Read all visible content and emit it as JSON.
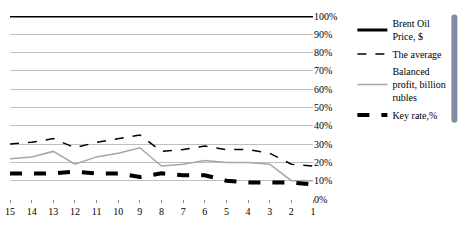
{
  "chart_data": {
    "type": "line",
    "categories": [
      "15",
      "14",
      "13",
      "12",
      "11",
      "10",
      "9",
      "8",
      "7",
      "6",
      "5",
      "4",
      "3",
      "2",
      "1"
    ],
    "series": [
      {
        "name": "Brent Oil Price, $",
        "color": "#000000",
        "line_style": "solid",
        "values": [
          100,
          100,
          100,
          100,
          100,
          100,
          100,
          100,
          100,
          100,
          100,
          100,
          100,
          100,
          100
        ]
      },
      {
        "name": "The average",
        "color": "#000000",
        "line_style": "dashed",
        "values": [
          30,
          31,
          33,
          28,
          31,
          33,
          35,
          26,
          27,
          29,
          27,
          27,
          25,
          19,
          18
        ]
      },
      {
        "name": "Balanced profit, billion rubles",
        "color": "#a6a6a6",
        "line_style": "solid",
        "values": [
          22,
          23,
          26,
          19,
          23,
          25,
          28,
          18,
          19,
          21,
          20,
          20,
          19,
          10,
          10
        ]
      },
      {
        "name": "Key rate,%",
        "color": "#000000",
        "line_style": "dashed",
        "values": [
          14,
          14,
          14,
          15,
          14,
          14,
          12,
          14,
          13,
          13,
          10,
          9,
          9,
          9,
          8
        ]
      }
    ],
    "ylim": [
      0,
      100
    ],
    "yticks": [
      {
        "value": 0,
        "label": "0%"
      },
      {
        "value": 10,
        "label": "10%"
      },
      {
        "value": 20,
        "label": "20%"
      },
      {
        "value": 30,
        "label": "30%"
      },
      {
        "value": 40,
        "label": "40%"
      },
      {
        "value": 50,
        "label": "50%"
      },
      {
        "value": 60,
        "label": "60%"
      },
      {
        "value": 70,
        "label": "70%"
      },
      {
        "value": 80,
        "label": "80%"
      },
      {
        "value": 90,
        "label": "90%"
      },
      {
        "value": 100,
        "label": "100%"
      }
    ],
    "grid": true,
    "legend": "right"
  }
}
